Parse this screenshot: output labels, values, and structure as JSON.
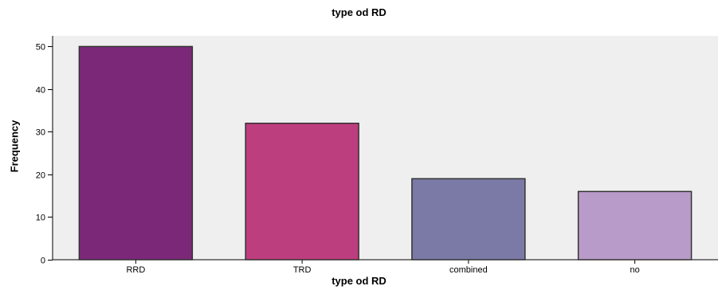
{
  "colors": {
    "plot_background": "#EFEFEF",
    "bar_outline": "#333333"
  },
  "chart_data": {
    "type": "bar",
    "title": "type od RD",
    "xlabel": "type od RD",
    "ylabel": "Frequency",
    "categories": [
      "RRD",
      "TRD",
      "combined",
      "no"
    ],
    "values": [
      50,
      32,
      19,
      16
    ],
    "bar_colors": [
      "#7C2878",
      "#BD3E7E",
      "#7B7AA6",
      "#B99BC9"
    ],
    "ylim": [
      0,
      52.5
    ],
    "yticks": [
      0,
      10,
      20,
      30,
      40,
      50
    ],
    "grid": false,
    "legend": "none"
  }
}
